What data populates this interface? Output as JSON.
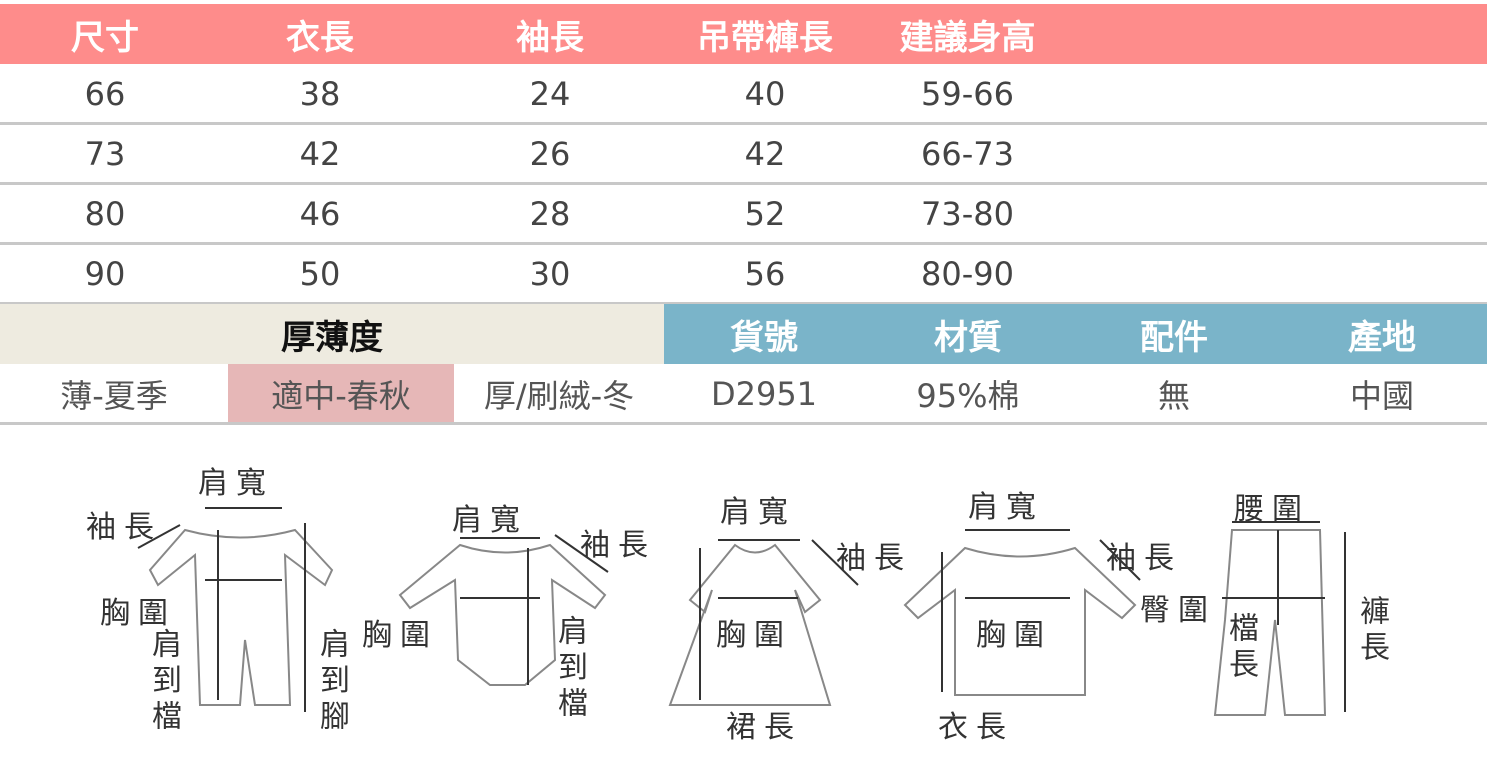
{
  "size_table": {
    "headers": [
      "尺寸",
      "衣長",
      "袖長",
      "吊帶褲長",
      "建議身高"
    ],
    "rows": [
      [
        "66",
        "38",
        "24",
        "40",
        "59-66"
      ],
      [
        "73",
        "42",
        "26",
        "42",
        "66-73"
      ],
      [
        "80",
        "46",
        "28",
        "52",
        "73-80"
      ],
      [
        "90",
        "50",
        "30",
        "56",
        "80-90"
      ]
    ]
  },
  "thickness": {
    "title": "厚薄度",
    "options": [
      "薄-夏季",
      "適中-春秋",
      "厚/刷絨-冬"
    ],
    "selected": "適中-春秋"
  },
  "info": {
    "headers": [
      "貨號",
      "材質",
      "配件",
      "產地"
    ],
    "values": [
      "D2951",
      "95%棉",
      "無",
      "中國"
    ]
  },
  "diagrams": {
    "romper": {
      "shoulder": "肩寬",
      "sleeve": "袖長",
      "chest": "胸圍",
      "shoulder_to_crotch": "肩到檔",
      "shoulder_to_foot": "肩到腳"
    },
    "bodysuit": {
      "shoulder": "肩寬",
      "sleeve": "袖長",
      "chest": "胸圍",
      "shoulder_to_crotch": "肩到檔"
    },
    "dress": {
      "shoulder": "肩寬",
      "sleeve": "袖長",
      "chest": "胸圍",
      "skirt_length": "裙長"
    },
    "top": {
      "shoulder": "肩寬",
      "sleeve": "袖長",
      "chest": "胸圍",
      "length": "衣長"
    },
    "pants": {
      "waist": "腰圍",
      "hip": "臀圍",
      "rise": "檔長",
      "length": "褲長"
    }
  },
  "colors": {
    "header": "#fe8c8b",
    "thickness_bg": "#eeebe0",
    "info_bg": "#7ab4c9",
    "selected": "#e6b7b7"
  }
}
